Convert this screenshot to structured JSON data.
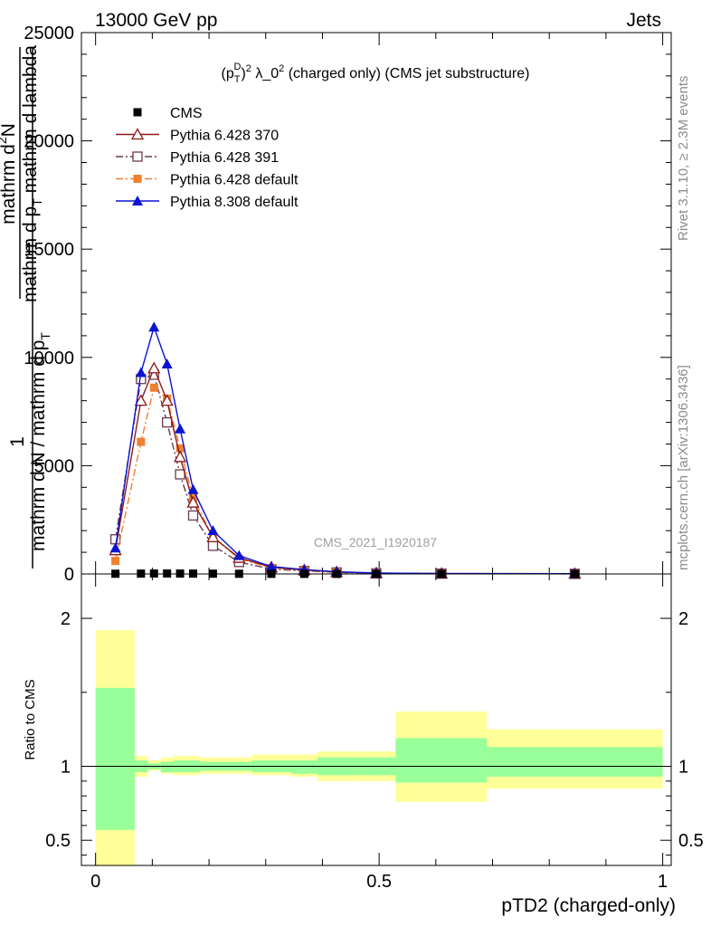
{
  "header": {
    "left": "13000 GeV pp",
    "right": "Jets"
  },
  "main_panel": {
    "title_parts": [
      "(p",
      "T",
      "D",
      ")",
      "2",
      " λ_0",
      "2",
      " (charged only) (CMS jet substructure)"
    ],
    "ylabel_top": "mathrm d",
    "ylabel_top_sup": "2",
    "ylabel_top_rest": "N",
    "ylabel_bottom": "mathrm d p",
    "ylabel_bottom_sub": "T",
    "ylabel_bottom_rest": " mathrm d lambda",
    "ylabel_full": "1 / mathrm dN / mathrm d p_T mathrm d^2N / mathrm d p_T mathrm d lambda",
    "ylabel_numer_frac": "1",
    "ylabel_denom_frac": "mathrm d N / mathrm d p",
    "ylabel_denom_sub": "T",
    "ylabel_denom_rest": "",
    "watermark": "CMS_2021_I1920187"
  },
  "ratio_panel": {
    "ylabel": "Ratio to CMS"
  },
  "xaxis": {
    "label": "pTD2 (charged-only)"
  },
  "side_texts": {
    "rivet": "Rivet 3.1.10, ≥ 2.3M events",
    "url": "mcplots.cern.ch [arXiv:1306.3436]"
  },
  "legend": {
    "placement": "top-left",
    "entries": [
      {
        "label": "CMS",
        "color": "#000000",
        "marker": "square-filled",
        "line": "none"
      },
      {
        "label": "Pythia 6.428 370",
        "color": "#8b1a1a",
        "marker": "triangle-open",
        "line": "solid"
      },
      {
        "label": "Pythia 6.428 391",
        "color": "#6b3a4e",
        "marker": "square-open",
        "line": "dashdot"
      },
      {
        "label": "Pythia 6.428 default",
        "color": "#f08030",
        "marker": "square-filled",
        "line": "dashdot"
      },
      {
        "label": "Pythia 8.308 default",
        "color": "#0a14d2",
        "marker": "triangle-filled",
        "line": "solid"
      }
    ]
  },
  "chart_data": [
    {
      "type": "line",
      "panel": "main",
      "xlim": [
        -0.025,
        1.015
      ],
      "ylim": [
        0,
        25000
      ],
      "yticks": [
        0,
        5000,
        10000,
        15000,
        20000,
        25000
      ],
      "ytick_labels": [
        "0",
        "5000",
        "10000",
        "15000",
        "20000",
        "25000"
      ],
      "bins": [
        0,
        0.069,
        0.092,
        0.115,
        0.138,
        0.161,
        0.184,
        0.23,
        0.276,
        0.345,
        0.391,
        0.46,
        0.529,
        0.69,
        1.0
      ],
      "x": [
        0.035,
        0.08,
        0.103,
        0.126,
        0.149,
        0.172,
        0.207,
        0.253,
        0.31,
        0.368,
        0.425,
        0.495,
        0.61,
        0.845
      ],
      "series": [
        {
          "name": "CMS",
          "values": [
            10,
            15,
            20,
            20,
            18,
            15,
            12,
            8,
            5,
            3,
            2,
            1,
            0.5,
            0.2
          ]
        },
        {
          "name": "Pythia 6.428 370",
          "values": [
            1100,
            8000,
            9500,
            8000,
            5400,
            3300,
            1700,
            750,
            310,
            180,
            90,
            40,
            20,
            10
          ]
        },
        {
          "name": "Pythia 6.428 391",
          "values": [
            1600,
            9000,
            9200,
            7000,
            4600,
            2700,
            1300,
            550,
            220,
            140,
            70,
            30,
            15,
            5
          ]
        },
        {
          "name": "Pythia 6.428 default",
          "values": [
            600,
            6100,
            8600,
            8100,
            5800,
            3500,
            1700,
            700,
            280,
            160,
            80,
            35,
            15,
            8
          ]
        },
        {
          "name": "Pythia 8.308 default",
          "values": [
            1200,
            9300,
            11400,
            9700,
            6700,
            3900,
            2000,
            850,
            340,
            200,
            100,
            45,
            20,
            10
          ]
        }
      ]
    },
    {
      "type": "area",
      "panel": "ratio",
      "xlim": [
        -0.025,
        1.015
      ],
      "ylim": [
        0.33,
        2.3
      ],
      "yticks": [
        0.5,
        1,
        2
      ],
      "ytick_labels": [
        "0.5",
        "1",
        "2"
      ],
      "xticks": [
        0,
        0.5,
        1
      ],
      "xtick_labels": [
        "0",
        "0.5",
        "1"
      ],
      "reference_line": 1,
      "bands": [
        {
          "name": "total uncertainty",
          "color": "#ffff99",
          "bins": [
            0,
            0.069,
            0.092,
            0.115,
            0.138,
            0.161,
            0.184,
            0.23,
            0.276,
            0.345,
            0.391,
            0.46,
            0.529,
            0.69,
            1.0
          ],
          "low": [
            0.33,
            0.93,
            0.97,
            0.95,
            0.94,
            0.94,
            0.95,
            0.95,
            0.94,
            0.93,
            0.9,
            0.9,
            0.76,
            0.85
          ],
          "high": [
            1.92,
            1.07,
            1.04,
            1.06,
            1.07,
            1.07,
            1.06,
            1.06,
            1.08,
            1.08,
            1.1,
            1.1,
            1.37,
            1.25
          ]
        },
        {
          "name": "stat uncertainty",
          "color": "#99ff99",
          "bins": [
            0,
            0.069,
            0.092,
            0.115,
            0.138,
            0.161,
            0.184,
            0.23,
            0.276,
            0.345,
            0.391,
            0.46,
            0.529,
            0.69,
            1.0
          ],
          "low": [
            0.57,
            0.96,
            0.98,
            0.96,
            0.96,
            0.96,
            0.97,
            0.97,
            0.96,
            0.95,
            0.94,
            0.94,
            0.89,
            0.93
          ],
          "high": [
            1.53,
            1.04,
            1.02,
            1.03,
            1.04,
            1.04,
            1.03,
            1.03,
            1.04,
            1.04,
            1.06,
            1.06,
            1.19,
            1.13
          ]
        }
      ]
    }
  ]
}
